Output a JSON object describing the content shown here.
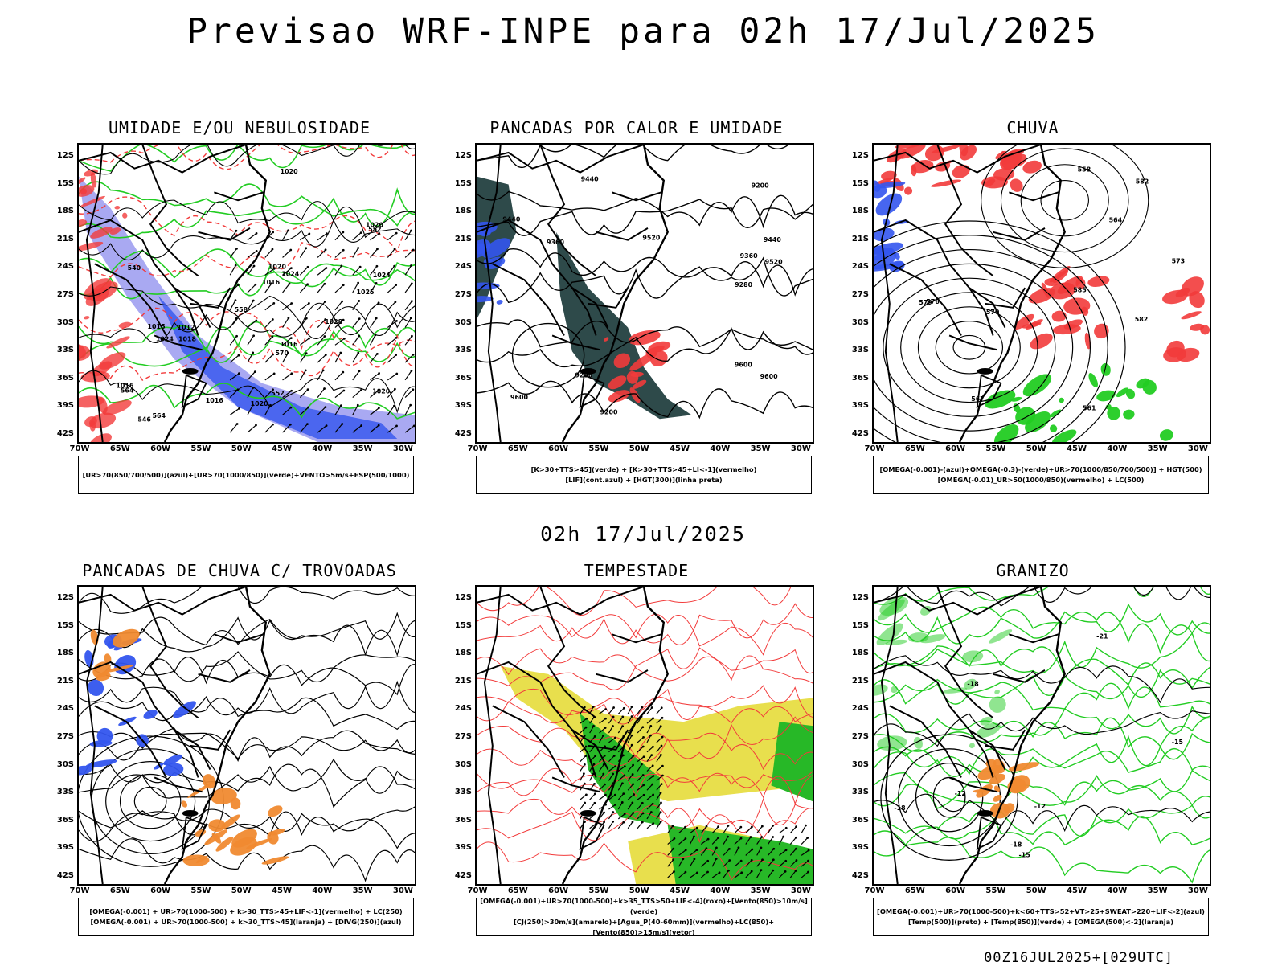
{
  "title": "Previsao WRF-INPE  para 02h 17/Jul/2025",
  "mid_date": "02h 17/Jul/2025",
  "run_label": "00Z16JUL2025+[029UTC]",
  "lat_labels": [
    "12S",
    "15S",
    "18S",
    "21S",
    "24S",
    "27S",
    "30S",
    "33S",
    "36S",
    "39S",
    "42S"
  ],
  "lon_labels": [
    "70W",
    "65W",
    "60W",
    "55W",
    "50W",
    "45W",
    "40W",
    "35W",
    "30W"
  ],
  "colors": {
    "red": "#f23b3b",
    "green": "#22cc22",
    "blue": "#3355ee",
    "lavender": "#9a9af0",
    "darkteal": "#2e4a4a",
    "yellow": "#e6dc3a",
    "orange": "#f08a30",
    "purple": "#7766ee"
  },
  "panels": [
    {
      "id": "umidade",
      "title": "UMIDADE E/OU NEBULOSIDADE",
      "legend": [
        "[UR>70(850/700/500)](azul)+[UR>70(1000/850)](verde)+VENTO>5m/s+ESP(500/1000)"
      ],
      "contour_labels": [
        "1016",
        "1016",
        "1020",
        "1024",
        "1024",
        "1028",
        "1020",
        "1018",
        "1020",
        "1020",
        "1016",
        "1012",
        "1020",
        "1016",
        "1015",
        "1025",
        "1024",
        "570",
        "564",
        "552",
        "552",
        "546",
        "540",
        "558",
        "564"
      ]
    },
    {
      "id": "pancadas-calor",
      "title": "PANCADAS POR CALOR E UMIDADE",
      "legend": [
        "[K>30+TTS>45](verde) + [K>30+TTS>45+LI<-1](vermelho)",
        "[LIF](cont.azul) + [HGT(300)](linha preta)"
      ],
      "contour_labels": [
        "9600",
        "9440",
        "9600",
        "9520",
        "9600",
        "9440",
        "9360",
        "9280",
        "9200",
        "9360",
        "9520",
        "9440",
        "9280",
        "9200"
      ]
    },
    {
      "id": "chuva",
      "title": "CHUVA",
      "legend": [
        "[OMEGA(-0.001)-(azul)+OMEGA(-0.3)-(verde)+UR>70(1000/850/700/500)] + HGT(500)",
        "[OMEGA(-0.01)_UR>50(1000/850)(vermelho) + LC(500)"
      ],
      "contour_labels": [
        "585",
        "582",
        "582",
        "579",
        "576",
        "573",
        "570",
        "567",
        "564",
        "561",
        "558"
      ]
    },
    {
      "id": "pancadas-trovoadas",
      "title": "PANCADAS DE CHUVA C/ TROVOADAS",
      "legend": [
        "[OMEGA(-0.001) + UR>70(1000-500) + k>30_TTS>45+LIF<-1](vermelho) + LC(250)",
        "[OMEGA(-0.001) + UR>70(1000-500) + k>30_TTS>45](laranja) + [DIVG(250)](azul)"
      ],
      "contour_labels": []
    },
    {
      "id": "tempestade",
      "title": "TEMPESTADE",
      "legend": [
        "[OMEGA(-0.001)+UR>70(1000-500)+k>35_TTS>50+LIF<-4](roxo)+[Vento(850)>10m/s](verde)",
        "[CJ(250)>30m/s](amarelo)+[Agua_P(40-60mm)](vermelho)+LC(850)+[Vento(850)>15m/s](vetor)"
      ],
      "contour_labels": []
    },
    {
      "id": "granizo",
      "title": "GRANIZO",
      "legend": [
        "[OMEGA(-0.001)+UR>70(1000-500)+k<60+TTS>52+VT>25+SWEAT>220+LIF<-2](azul)",
        "[Temp(500)](preto) + [Temp(850)](verde) + [OMEGA(500)<-2](laranja)"
      ],
      "contour_labels": [
        "-12",
        "-15",
        "-18",
        "-21",
        "-18",
        "-12",
        "-15",
        "-18"
      ]
    }
  ]
}
